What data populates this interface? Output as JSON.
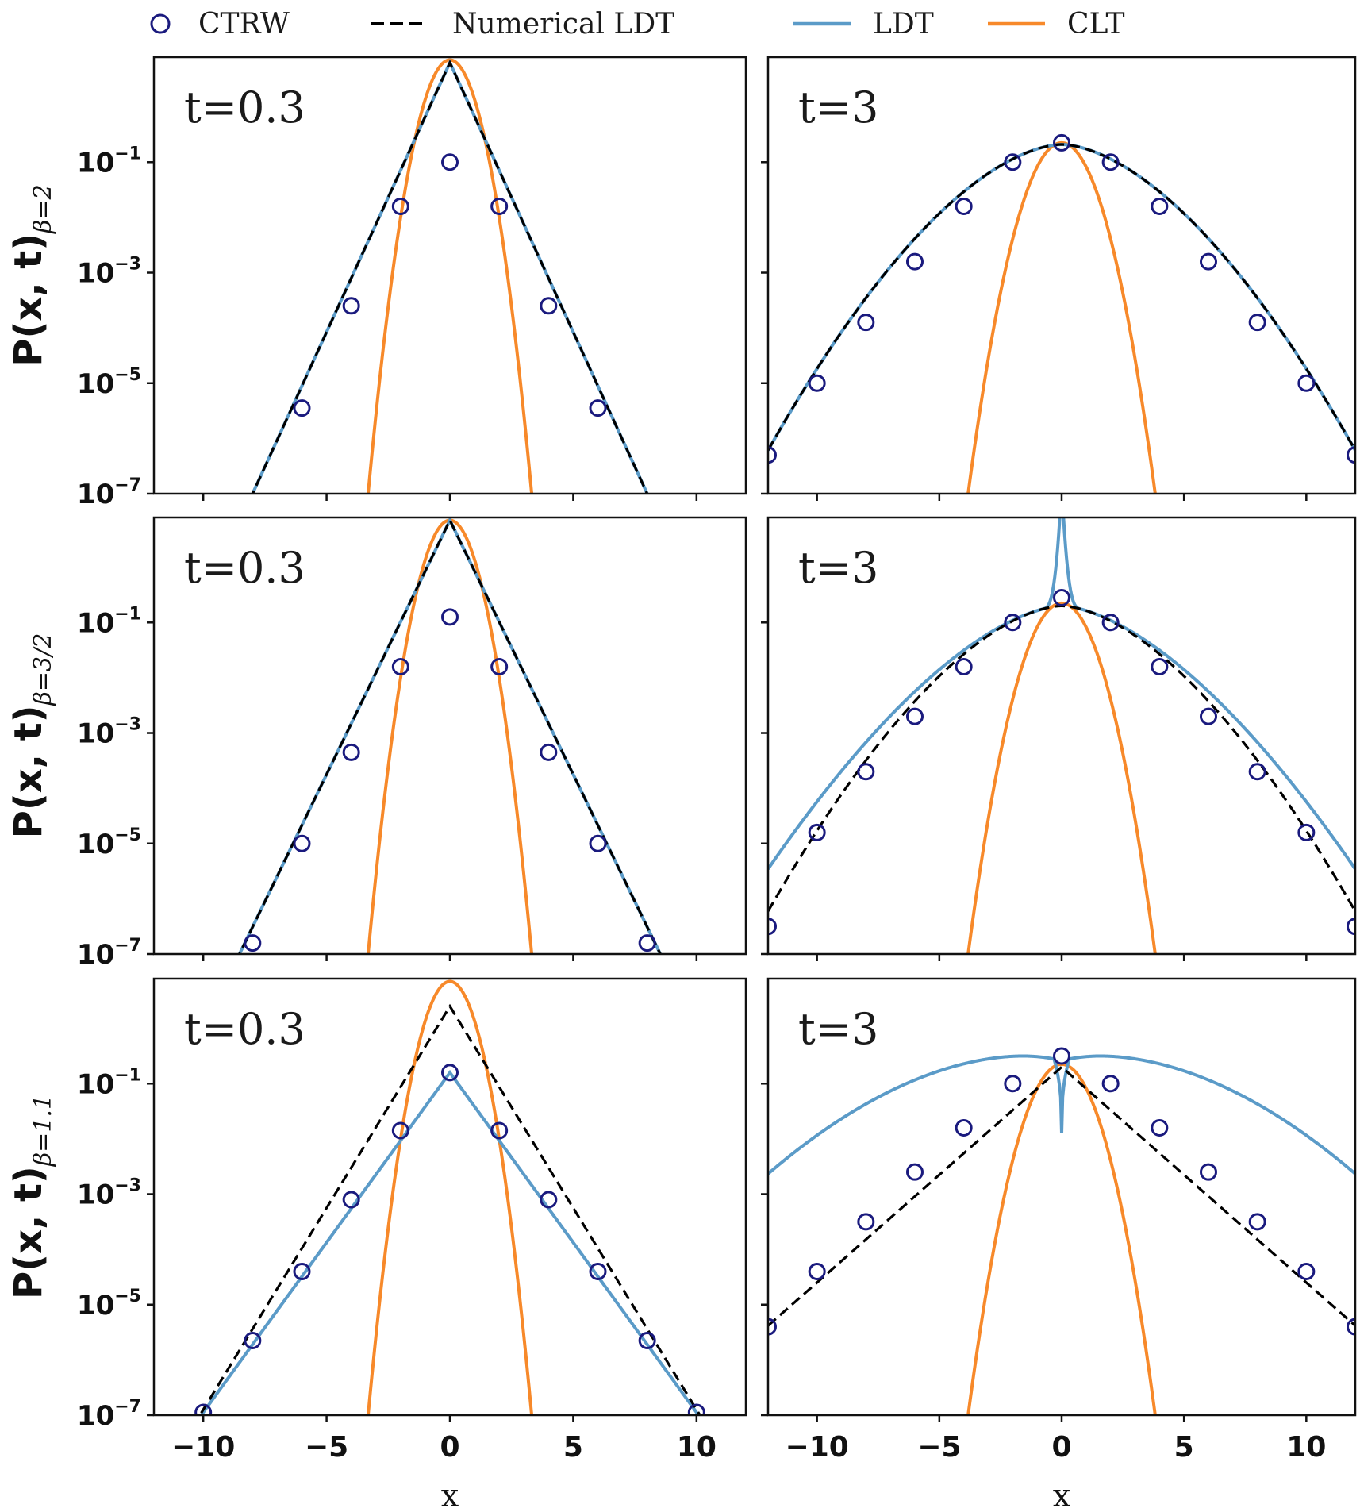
{
  "legend": {
    "entries": [
      {
        "label": "CTRW",
        "kind": "marker",
        "color": "#1a1a7e"
      },
      {
        "label": "Numerical LDT",
        "kind": "dashed",
        "color": "#000000"
      },
      {
        "label": "LDT",
        "kind": "solid",
        "color": "#5b9bc8"
      },
      {
        "label": "CLT",
        "kind": "solid",
        "color": "#f7892a"
      }
    ]
  },
  "ytick_labels": [
    {
      "base": "10",
      "exp": "−1"
    },
    {
      "base": "10",
      "exp": "−3"
    },
    {
      "base": "10",
      "exp": "−5"
    },
    {
      "base": "10",
      "exp": "−7"
    }
  ],
  "xtick_labels": [
    "−10",
    "−5",
    "0",
    "5",
    "10"
  ],
  "colors": {
    "ctrw": "#1a1a7e",
    "numerical_ldt": "#000000",
    "ldt": "#5b9bc8",
    "clt": "#f7892a"
  },
  "chart_data": [
    {
      "type": "line",
      "row": 1,
      "col": 1,
      "panel_label": "t=0.3",
      "ylabel_main": "P(x, t)",
      "ylabel_sub": "β=2",
      "xlabel": "",
      "xlim": [
        -12,
        12
      ],
      "ylim_log10": [
        -7,
        0.9
      ],
      "ctrw": {
        "x": [
          -6,
          -4,
          -2,
          0,
          2,
          4,
          6
        ],
        "log10_y": [
          -5.45,
          -3.6,
          -1.8,
          -1.0,
          -1.8,
          -3.6,
          -5.45
        ]
      },
      "ldt": {
        "peak_log10": 0.8,
        "slope": 0.975
      },
      "numerical_ldt": {
        "peak_log10": 0.8,
        "slope": 0.975
      },
      "clt": {
        "peak_log10": 0.85,
        "width": 0.78
      }
    },
    {
      "type": "line",
      "row": 1,
      "col": 2,
      "panel_label": "t=3",
      "ylabel_main": "",
      "ylabel_sub": "",
      "xlabel": "",
      "xlim": [
        -12,
        12
      ],
      "ylim_log10": [
        -7,
        0.9
      ],
      "ctrw": {
        "x": [
          -12,
          -10,
          -8,
          -6,
          -4,
          -2,
          0,
          2,
          4,
          6,
          8,
          10,
          12
        ],
        "log10_y": [
          -6.3,
          -5.0,
          -3.9,
          -2.8,
          -1.8,
          -1.0,
          -0.65,
          -1.0,
          -1.8,
          -2.8,
          -3.9,
          -5.0,
          -6.3
        ]
      },
      "ldt": {
        "peak_log10": -0.68,
        "w": 0.081,
        "q": 1.7
      },
      "numerical_ldt": {
        "peak_log10": -0.68,
        "w": 0.081,
        "q": 1.7
      },
      "clt": {
        "peak_log10": -0.65,
        "width": 1.0
      }
    },
    {
      "type": "line",
      "row": 2,
      "col": 1,
      "panel_label": "t=0.3",
      "ylabel_main": "P(x, t)",
      "ylabel_sub": "β=3/2",
      "xlabel": "",
      "xlim": [
        -12,
        12
      ],
      "ylim_log10": [
        -7,
        0.9
      ],
      "ctrw": {
        "x": [
          -8,
          -6,
          -4,
          -2,
          0,
          2,
          4,
          6,
          8
        ],
        "log10_y": [
          -6.8,
          -5.0,
          -3.35,
          -1.8,
          -0.9,
          -1.8,
          -3.35,
          -5.0,
          -6.8
        ]
      },
      "ldt": {
        "peak_log10": 0.85,
        "slope": 0.92
      },
      "numerical_ldt": {
        "peak_log10": 0.85,
        "slope": 0.92
      },
      "clt": {
        "peak_log10": 0.85,
        "width": 0.78
      }
    },
    {
      "type": "line",
      "row": 2,
      "col": 2,
      "panel_label": "t=3",
      "ylabel_main": "",
      "ylabel_sub": "",
      "xlabel": "",
      "xlim": [
        -12,
        12
      ],
      "ylim_log10": [
        -7,
        0.9
      ],
      "ctrw": {
        "x": [
          -12,
          -10,
          -8,
          -6,
          -4,
          -2,
          0,
          2,
          4,
          6,
          8,
          10,
          12
        ],
        "log10_y": [
          -6.5,
          -4.8,
          -3.7,
          -2.7,
          -1.8,
          -1.0,
          -0.55,
          -1.0,
          -1.8,
          -2.7,
          -3.7,
          -4.8,
          -6.5
        ]
      },
      "ldt": {
        "peak_log10": -0.7,
        "w": 0.085,
        "q": 1.62,
        "center_spike": true
      },
      "numerical_ldt": {
        "peak_log10": -0.7,
        "w": 0.085,
        "q": 1.68
      },
      "clt": {
        "peak_log10": -0.65,
        "width": 1.0
      }
    },
    {
      "type": "line",
      "row": 3,
      "col": 1,
      "panel_label": "t=0.3",
      "ylabel_main": "P(x, t)",
      "ylabel_sub": "β=1.1",
      "xlabel": "x",
      "xlim": [
        -12,
        12
      ],
      "ylim_log10": [
        -7,
        0.9
      ],
      "ctrw": {
        "x": [
          -10,
          -8,
          -6,
          -4,
          -2,
          0,
          2,
          4,
          6,
          8,
          10
        ],
        "log10_y": [
          -6.95,
          -5.65,
          -4.4,
          -3.1,
          -1.85,
          -0.8,
          -1.85,
          -3.1,
          -4.4,
          -5.65,
          -6.95
        ]
      },
      "ldt": {
        "peak_log10": -0.8,
        "slope": 0.615
      },
      "numerical_ldt": {
        "peak_log10": 0.4,
        "slope": 0.73
      },
      "clt": {
        "peak_log10": 0.85,
        "width": 0.78
      }
    },
    {
      "type": "line",
      "row": 3,
      "col": 2,
      "panel_label": "t=3",
      "ylabel_main": "",
      "ylabel_sub": "",
      "xlabel": "x",
      "xlim": [
        -12,
        12
      ],
      "ylim_log10": [
        -7,
        0.9
      ],
      "ctrw": {
        "x": [
          -12,
          -10,
          -8,
          -6,
          -4,
          -2,
          0,
          2,
          4,
          6,
          8,
          10,
          12
        ],
        "log10_y": [
          -5.4,
          -4.4,
          -3.5,
          -2.6,
          -1.8,
          -1.0,
          -0.5,
          -1.0,
          -1.8,
          -2.6,
          -3.5,
          -4.4,
          -5.4
        ]
      },
      "ldt": {
        "peak_log10": -0.5,
        "dip_log10": -1.9,
        "shape": "double_hump"
      },
      "numerical_ldt": {
        "peak_log10": -0.7,
        "slope": 0.39
      },
      "clt": {
        "peak_log10": -0.65,
        "width": 1.0
      }
    }
  ]
}
